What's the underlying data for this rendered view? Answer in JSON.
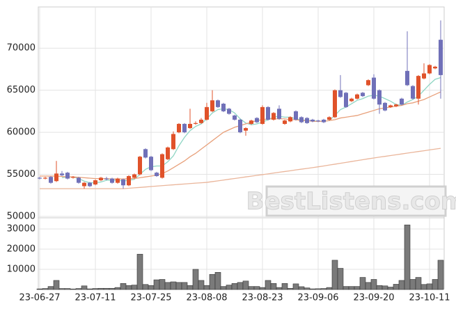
{
  "chart_data": [
    {
      "type": "candlestick",
      "watermark": "BestListens.com",
      "up_color": "#e0522a",
      "down_color": "#7070b8",
      "ylim": [
        50000,
        74900
      ],
      "yticks": [
        50000,
        55000,
        60000,
        65000,
        70000
      ],
      "grid": true,
      "open": [
        54600,
        54500,
        54700,
        54200,
        55100,
        55200,
        54600,
        54600,
        53600,
        54000,
        53800,
        54300,
        54500,
        54500,
        54000,
        54400,
        53700,
        54600,
        55000,
        58000,
        57100,
        55200,
        54600,
        56800,
        58000,
        60000,
        61000,
        60500,
        61000,
        61100,
        61500,
        62500,
        63800,
        63400,
        62800,
        62000,
        61500,
        60200,
        61000,
        61700,
        61000,
        63000,
        61500,
        62800,
        61000,
        61300,
        62500,
        61800,
        61700,
        61500,
        61400,
        61500,
        61500,
        61800,
        65000,
        64700,
        63700,
        64000,
        64700,
        65600,
        66500,
        65000,
        63500,
        63000,
        63100,
        64000,
        67300,
        65500,
        64000,
        66400,
        67000,
        67600,
        71000
      ],
      "close": [
        54500,
        54600,
        54000,
        55100,
        54900,
        54500,
        54700,
        54000,
        54000,
        53600,
        54300,
        54600,
        54400,
        54000,
        54500,
        53700,
        54800,
        55000,
        57100,
        57000,
        55500,
        54800,
        57400,
        58200,
        59800,
        61000,
        60000,
        61000,
        61100,
        61500,
        63000,
        63800,
        63000,
        62500,
        62200,
        61500,
        60000,
        60500,
        61400,
        61200,
        63000,
        61500,
        62300,
        61600,
        61400,
        61800,
        61500,
        61200,
        61100,
        61300,
        61300,
        61200,
        61800,
        65000,
        64200,
        63000,
        64000,
        64500,
        64300,
        66200,
        64000,
        63300,
        62600,
        63200,
        63300,
        63300,
        65600,
        64000,
        66700,
        67000,
        68000,
        67800,
        66800
      ],
      "high": [
        54700,
        54700,
        54800,
        56600,
        55400,
        55300,
        54800,
        54700,
        54100,
        54100,
        54400,
        54700,
        54700,
        54600,
        54600,
        54500,
        54900,
        55100,
        57200,
        58100,
        57200,
        55300,
        57500,
        58300,
        60100,
        61100,
        61100,
        62800,
        61300,
        61700,
        63500,
        65000,
        63900,
        63500,
        62900,
        62100,
        61600,
        60600,
        61500,
        61800,
        63200,
        63100,
        62400,
        63200,
        61500,
        61900,
        62600,
        61900,
        61800,
        61600,
        61500,
        61600,
        61900,
        65100,
        66800,
        64800,
        64100,
        64600,
        64800,
        66300,
        66900,
        65100,
        63600,
        63300,
        63400,
        64100,
        72000,
        65600,
        66800,
        68200,
        68100,
        67900,
        73300
      ],
      "low": [
        54400,
        54400,
        53900,
        54100,
        54800,
        54400,
        54500,
        53900,
        53300,
        53500,
        53700,
        54200,
        54300,
        53900,
        53900,
        53300,
        53600,
        54500,
        54900,
        56900,
        55400,
        54700,
        54500,
        56700,
        57900,
        59900,
        59900,
        60400,
        60900,
        61000,
        61400,
        62400,
        62900,
        62400,
        62100,
        61400,
        59900,
        59600,
        60900,
        61100,
        60900,
        61400,
        61400,
        61500,
        60900,
        61200,
        61400,
        61100,
        61000,
        61200,
        61200,
        61100,
        61400,
        61700,
        64100,
        62900,
        63600,
        63900,
        64200,
        65500,
        63900,
        62200,
        62500,
        62900,
        63000,
        63200,
        65500,
        63900,
        63300,
        66300,
        66900,
        67500,
        64000
      ],
      "series": [
        {
          "color": "#8fd6c4",
          "values": [
            null,
            null,
            null,
            null,
            54600,
            54700,
            54700,
            54500,
            54200,
            54000,
            54000,
            54100,
            54300,
            54300,
            54300,
            54200,
            54300,
            54400,
            55000,
            55600,
            55900,
            56000,
            56000,
            56500,
            57200,
            58400,
            59400,
            60200,
            60700,
            61000,
            61600,
            62300,
            62700,
            62800,
            62700,
            62300,
            61600,
            61100,
            60900,
            61000,
            61200,
            61500,
            61800,
            61900,
            61800,
            61800,
            61600,
            61500,
            61400,
            61400,
            61300,
            61300,
            61400,
            62000,
            62700,
            63000,
            63400,
            63800,
            64000,
            64300,
            64400,
            64300,
            64000,
            63700,
            63300,
            63200,
            63600,
            63900,
            64300,
            65000,
            65700,
            66300,
            66500
          ]
        },
        {
          "color": "#e8a07a",
          "values": [
            54800,
            54800,
            54800,
            54800,
            54750,
            54700,
            54700,
            54650,
            54600,
            54550,
            54500,
            54500,
            54500,
            54450,
            54450,
            54450,
            54500,
            54500,
            54600,
            54700,
            54800,
            54900,
            55100,
            55400,
            55800,
            56200,
            56600,
            57100,
            57500,
            58000,
            58500,
            59000,
            59500,
            60000,
            60300,
            60600,
            60800,
            61000,
            61200,
            61400,
            61500,
            61600,
            61600,
            61600,
            61600,
            61500,
            61500,
            61400,
            61400,
            61300,
            61300,
            61300,
            61400,
            61500,
            61700,
            61800,
            61900,
            62000,
            62200,
            62400,
            62600,
            62800,
            62900,
            63000,
            63100,
            63200,
            63400,
            63500,
            63700,
            63900,
            64200,
            64500,
            64800
          ]
        },
        {
          "color": "#eab59a",
          "values": [
            53300,
            53300,
            53300,
            53300,
            53300,
            53300,
            53300,
            53300,
            53300,
            53300,
            53300,
            53300,
            53300,
            53300,
            53300,
            53300,
            53350,
            53400,
            53450,
            53500,
            53560,
            53610,
            53660,
            53710,
            53760,
            53810,
            53860,
            53910,
            53960,
            54000,
            54050,
            54140,
            54230,
            54320,
            54420,
            54510,
            54600,
            54700,
            54790,
            54880,
            54970,
            55060,
            55160,
            55250,
            55340,
            55430,
            55530,
            55620,
            55710,
            55800,
            55900,
            56000,
            56110,
            56210,
            56320,
            56420,
            56530,
            56640,
            56740,
            56850,
            56950,
            57050,
            57140,
            57240,
            57330,
            57430,
            57530,
            57620,
            57720,
            57810,
            57910,
            58000,
            58100
          ]
        }
      ]
    },
    {
      "type": "bar",
      "color": "#7a7a7a",
      "ylim": [
        0,
        35500
      ],
      "yticks": [
        10000,
        20000,
        30000
      ],
      "grid": true,
      "categories": [
        "23-06-27",
        null,
        null,
        null,
        null,
        null,
        null,
        null,
        null,
        null,
        "23-07-11",
        null,
        null,
        null,
        null,
        null,
        null,
        null,
        null,
        null,
        "23-07-25",
        null,
        null,
        null,
        null,
        null,
        null,
        null,
        null,
        null,
        "23-08-08",
        null,
        null,
        null,
        null,
        null,
        null,
        null,
        null,
        null,
        "23-08-23",
        null,
        null,
        null,
        null,
        null,
        null,
        null,
        null,
        null,
        "23-09-06",
        null,
        null,
        null,
        null,
        null,
        null,
        null,
        null,
        null,
        "23-09-20",
        null,
        null,
        null,
        null,
        null,
        null,
        null,
        null,
        null,
        "23-10-11",
        null,
        null
      ],
      "values": [
        300,
        500,
        1500,
        4500,
        500,
        500,
        200,
        500,
        1800,
        300,
        500,
        600,
        600,
        600,
        1000,
        3000,
        2000,
        2200,
        17500,
        2500,
        2000,
        4800,
        5000,
        3500,
        3800,
        3500,
        3500,
        2000,
        10000,
        4500,
        2000,
        7500,
        8500,
        1500,
        2200,
        3000,
        3500,
        4200,
        1500,
        1500,
        1000,
        4500,
        3000,
        1000,
        3000,
        600,
        2800,
        1400,
        800,
        300,
        400,
        500,
        1000,
        14500,
        10500,
        1500,
        1500,
        1500,
        6000,
        3500,
        5000,
        2000,
        1800,
        1200,
        2600,
        4500,
        32000,
        5000,
        6000,
        2500,
        2800,
        5000,
        14500
      ]
    }
  ]
}
